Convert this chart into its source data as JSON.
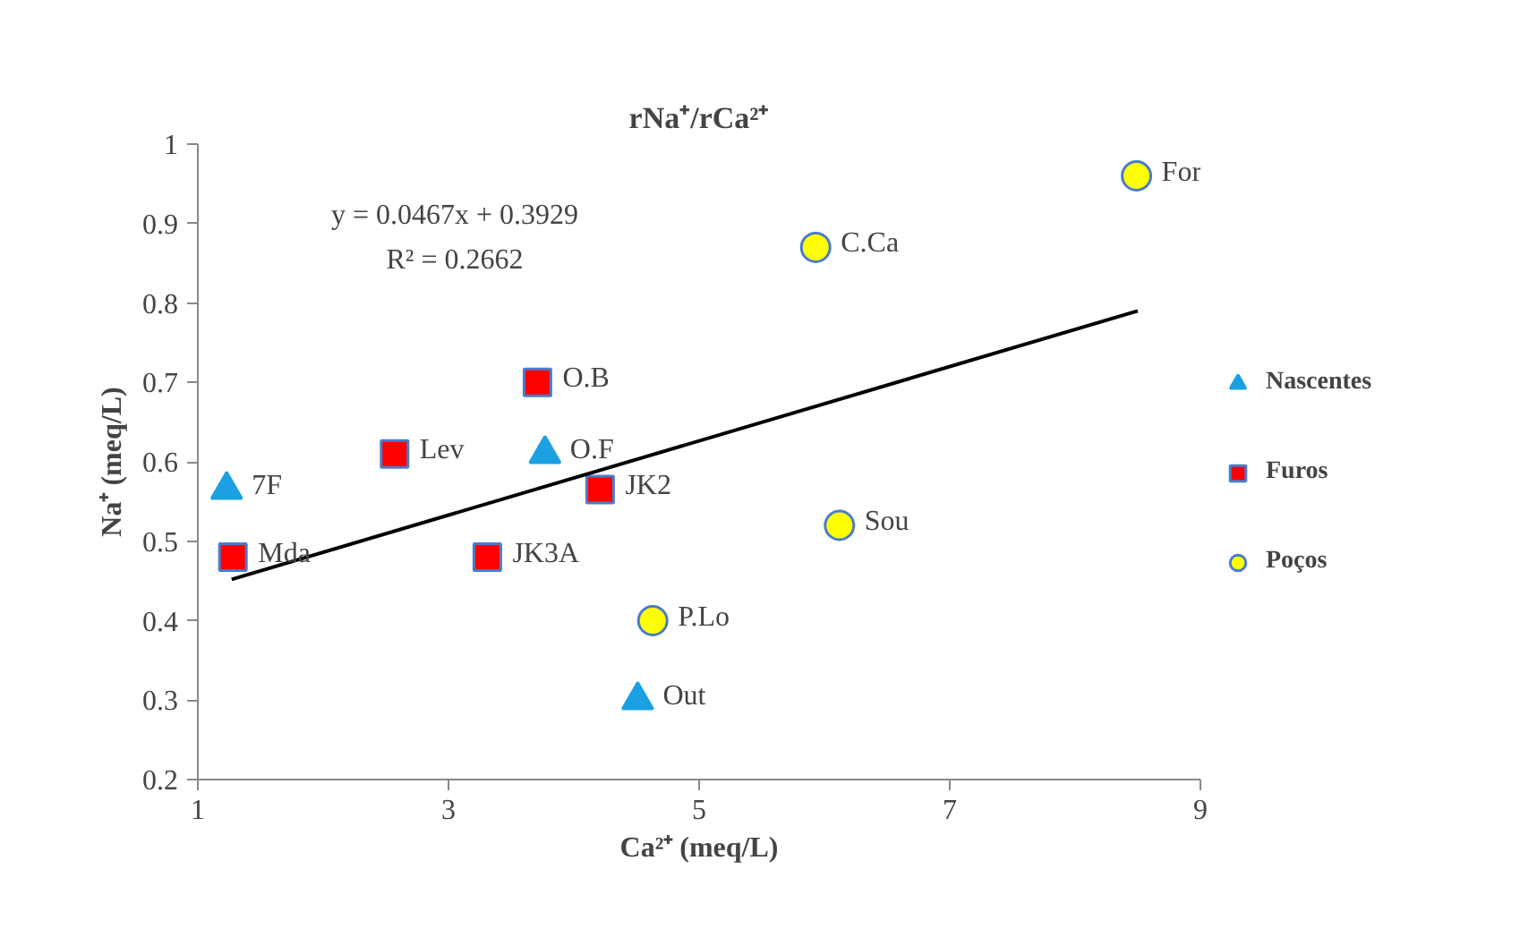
{
  "chart_data": {
    "type": "scatter",
    "title": "rNa⁺/rCa²⁺",
    "xlabel": "Ca²⁺ (meq/L)",
    "ylabel": "Na⁺ (meq/L)",
    "xlim": [
      1,
      9
    ],
    "xticks": [
      1,
      3,
      5,
      7,
      9
    ],
    "ylim": [
      0.2,
      1
    ],
    "yticks": [
      0.2,
      0.3,
      0.4,
      0.5,
      0.6,
      0.7,
      0.8,
      0.9,
      1
    ],
    "grid": false,
    "legend": "right",
    "series": [
      {
        "name": "Nascentes",
        "color": "#1ba1e2",
        "marker": "triangle",
        "x": [
          1.23,
          3.77,
          4.51
        ],
        "values": [
          0.565,
          0.61,
          0.3
        ]
      },
      {
        "name": "Furos",
        "color": "#ff0000",
        "marker": "square",
        "x": [
          1.28,
          2.57,
          3.71,
          4.21,
          3.31
        ],
        "values": [
          0.48,
          0.61,
          0.7,
          0.565,
          0.48
        ]
      },
      {
        "name": "Poços",
        "color": "#ffff00",
        "marker": "circle",
        "x": [
          4.63,
          6.12,
          5.93,
          8.49
        ],
        "values": [
          0.4,
          0.52,
          0.87,
          0.96
        ]
      },
      {
        "type": "line",
        "color": "#000000",
        "x": [
          1.27,
          8.5
        ],
        "values": [
          0.452,
          0.79
        ]
      }
    ],
    "annotations": [
      "y = 0.0467x + 0.3929",
      "R² = 0.2662",
      {
        "text": "7F",
        "x": 1.23,
        "y": 0.565
      },
      {
        "text": "Mda",
        "x": 1.28,
        "y": 0.48
      },
      {
        "text": "Lev",
        "x": 2.57,
        "y": 0.61
      },
      {
        "text": "O.B",
        "x": 3.71,
        "y": 0.7
      },
      {
        "text": "O.F",
        "x": 3.77,
        "y": 0.61
      },
      {
        "text": "JK2",
        "x": 4.21,
        "y": 0.565
      },
      {
        "text": "JK3A",
        "x": 3.31,
        "y": 0.48
      },
      {
        "text": "Out",
        "x": 4.51,
        "y": 0.3
      },
      {
        "text": "P.Lo",
        "x": 4.63,
        "y": 0.4
      },
      {
        "text": "Sou",
        "x": 6.12,
        "y": 0.52
      },
      {
        "text": "C.Ca",
        "x": 5.93,
        "y": 0.87
      },
      {
        "text": "For",
        "x": 8.49,
        "y": 0.96
      }
    ]
  }
}
